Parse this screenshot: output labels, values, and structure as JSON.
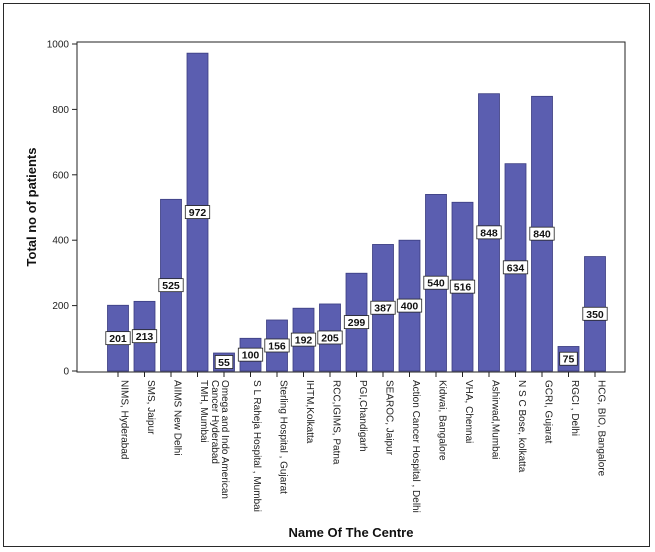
{
  "chart_data": {
    "type": "bar",
    "title": "",
    "xlabel": "Name Of The Centre",
    "ylabel": "Total no of patients",
    "ylim": [
      0,
      1000
    ],
    "yticks": [
      0,
      200,
      400,
      600,
      800,
      1000
    ],
    "grid": false,
    "bar_color": "#5b5eb0",
    "categories": [
      "NIMS, Hyderabad",
      "SMS, Jaipur",
      "AIIMS New Delhi",
      "TMH, Mumbai",
      "Omega and Indo American Cancer Hyderabad",
      "S L Raheja Hospital , Mumbai",
      "Sterling Hospital , Gujarat",
      "IHTM,Kolkatta",
      "RCC,IGIMS, Patna",
      "PGI,Chandigarh",
      "SEAROC, Jaipur",
      "Action Cancer Hospital , Delhi",
      "Kidwai, Bangalore",
      "VHA, Chennai",
      "Ashirwad,Mumbai",
      "N S C Bose, kolkatta",
      "GCRI, Gujarat",
      "RGCI , Delhi",
      "HCG, BIO, Bangalore"
    ],
    "values": [
      201,
      213,
      525,
      972,
      55,
      100,
      156,
      192,
      205,
      299,
      387,
      400,
      540,
      516,
      848,
      634,
      840,
      75,
      350
    ]
  }
}
